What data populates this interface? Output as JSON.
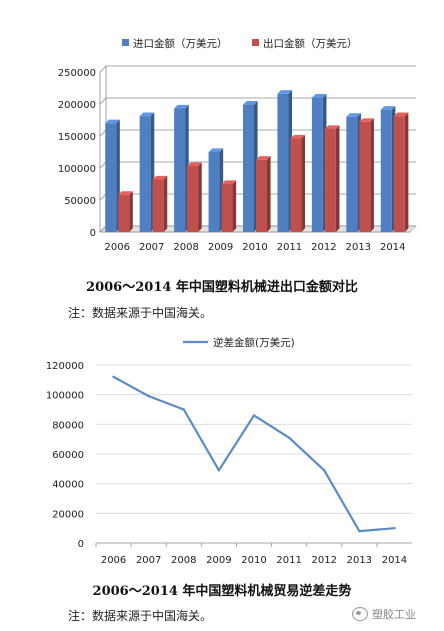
{
  "chart_data": [
    {
      "type": "bar",
      "categories": [
        "2006",
        "2007",
        "2008",
        "2009",
        "2010",
        "2011",
        "2012",
        "2013",
        "2014"
      ],
      "series": [
        {
          "name": "进口金额（万美元）",
          "values": [
            170000,
            181000,
            193000,
            125000,
            199000,
            216000,
            210000,
            180000,
            191000
          ],
          "color": "#4f7fc0"
        },
        {
          "name": "出口金额（万美元）",
          "values": [
            58000,
            82000,
            103000,
            75000,
            113000,
            146000,
            161000,
            172000,
            181000
          ],
          "color": "#c0504d"
        }
      ],
      "ylim": [
        0,
        250000
      ],
      "yticks": [
        0,
        50000,
        100000,
        150000,
        200000,
        250000
      ],
      "grid": true,
      "legend": "top"
    },
    {
      "type": "line",
      "categories": [
        "2006",
        "2007",
        "2008",
        "2009",
        "2010",
        "2011",
        "2012",
        "2013",
        "2014"
      ],
      "series": [
        {
          "name": "逆差金额(万美元)",
          "values": [
            112000,
            99000,
            90000,
            49000,
            86000,
            71000,
            49000,
            8000,
            10000
          ],
          "color": "#5b8bc5"
        }
      ],
      "ylim": [
        0,
        120000
      ],
      "yticks": [
        0,
        20000,
        40000,
        60000,
        80000,
        100000,
        120000
      ],
      "grid": true,
      "legend": "top"
    }
  ],
  "captions": {
    "chart1_title": "2006～2014 年中国塑料机械进出口金额对比",
    "chart1_note": "注：数据来源于中国海关。",
    "chart2_title": "2006～2014 年中国塑料机械贸易逆差走势",
    "chart2_note": "注：数据来源于中国海关。"
  },
  "watermark": {
    "text": "塑胶工业",
    "icon": "wechat-icon"
  }
}
